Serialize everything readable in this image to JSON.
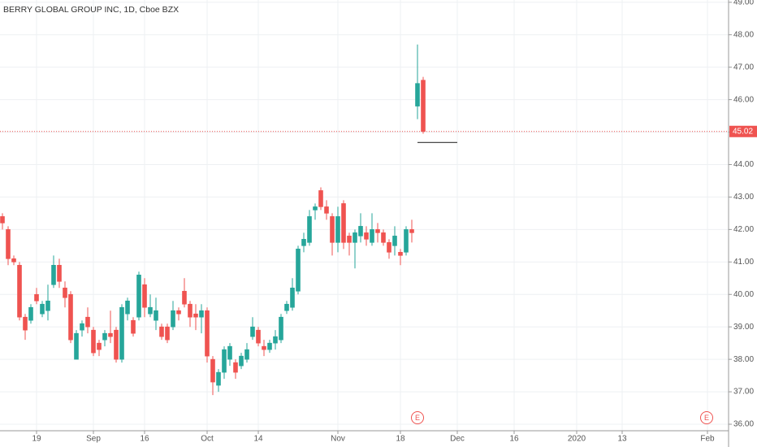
{
  "chart_data": {
    "type": "candlestick",
    "title": "BERRY GLOBAL GROUP INC, 1D, Cboe BZX",
    "categories": [
      null,
      null,
      null,
      null,
      null,
      null,
      "19",
      null,
      null,
      null,
      null,
      null,
      null,
      null,
      null,
      null,
      "Sep",
      null,
      null,
      null,
      null,
      null,
      null,
      null,
      null,
      "16",
      null,
      null,
      null,
      null,
      null,
      null,
      null,
      null,
      null,
      null,
      "Oct",
      null,
      null,
      null,
      null,
      null,
      null,
      null,
      null,
      "14",
      null,
      null,
      null,
      null,
      null,
      null,
      null,
      null,
      null,
      null,
      null,
      null,
      null,
      "Nov",
      null,
      null,
      null,
      null,
      null,
      null,
      null,
      null,
      null,
      null,
      "18",
      null,
      null,
      null,
      null,
      null,
      null,
      null,
      null,
      null,
      "Dec",
      null,
      null,
      null,
      null,
      null,
      null,
      null,
      null,
      null,
      "16",
      null,
      null,
      null,
      null,
      null,
      null,
      null,
      null,
      null,
      null,
      "2020",
      null,
      null,
      null,
      null,
      null,
      null,
      null,
      "13",
      null,
      null,
      null,
      null,
      null,
      null,
      null,
      null,
      null,
      null,
      null,
      null,
      null,
      null,
      "Feb",
      null,
      null,
      null
    ],
    "open": [
      42.4,
      42.0,
      41.1,
      40.9,
      39.3,
      39.2,
      40.0,
      39.4,
      39.5,
      40.3,
      40.9,
      40.2,
      40.0,
      38.0,
      38.9,
      39.3,
      38.9,
      38.5,
      38.6,
      38.8,
      38.9,
      38.0,
      39.4,
      39.2,
      39.3,
      40.3,
      39.4,
      39.2,
      39.0,
      39.0,
      39.0,
      39.5,
      40.1,
      39.7,
      39.4,
      39.3,
      39.5,
      38.0,
      37.2,
      37.6,
      38.0,
      37.9,
      37.8,
      38.0,
      38.7,
      38.9,
      38.4,
      38.3,
      38.5,
      38.6,
      39.5,
      39.6,
      40.1,
      41.5,
      41.6,
      42.6,
      43.2,
      42.7,
      42.4,
      41.6,
      42.8,
      41.8,
      41.6,
      41.8,
      41.9,
      41.6,
      42.0,
      41.9,
      41.6,
      41.5,
      41.3,
      41.3,
      42.0,
      45.8,
      46.6,
      null,
      null,
      null,
      null,
      null,
      null,
      null,
      null,
      null,
      null,
      null,
      null,
      null,
      null,
      null,
      null,
      null,
      null,
      null,
      null,
      null,
      null,
      null,
      null,
      null,
      null,
      null,
      null,
      null,
      null,
      null,
      null,
      null,
      null,
      null,
      null,
      null,
      null,
      null,
      null,
      null,
      null,
      null,
      null,
      null,
      null,
      null,
      null,
      null,
      null,
      null,
      null,
      null
    ],
    "high": [
      42.5,
      42.1,
      41.2,
      41.0,
      39.4,
      39.7,
      40.2,
      39.8,
      40.3,
      41.2,
      41.1,
      40.4,
      40.1,
      38.9,
      39.2,
      39.6,
      39.0,
      38.6,
      38.9,
      39.5,
      39.0,
      39.7,
      39.9,
      39.3,
      40.7,
      40.5,
      40.0,
      39.9,
      39.1,
      39.1,
      39.8,
      39.6,
      40.5,
      39.8,
      39.7,
      39.7,
      39.6,
      38.1,
      37.7,
      38.4,
      38.5,
      38.0,
      38.2,
      38.5,
      39.3,
      39.0,
      38.6,
      38.6,
      38.9,
      39.4,
      39.8,
      40.5,
      41.5,
      41.9,
      42.6,
      42.8,
      43.3,
      42.9,
      42.5,
      42.7,
      42.9,
      41.9,
      42.0,
      42.5,
      42.1,
      42.5,
      42.2,
      42.0,
      41.7,
      42.1,
      41.4,
      42.1,
      42.3,
      47.7,
      46.7,
      null,
      null,
      null,
      null,
      null,
      null,
      null,
      null,
      null,
      null,
      null,
      null,
      null,
      null,
      null,
      null,
      null,
      null,
      null,
      null,
      null,
      null,
      null,
      null,
      null,
      null,
      null,
      null,
      null,
      null,
      null,
      null,
      null,
      null,
      null,
      null,
      null,
      null,
      null,
      null,
      null,
      null,
      null,
      null,
      null,
      null,
      null,
      null,
      null,
      null,
      null,
      null,
      null
    ],
    "low": [
      42.0,
      40.9,
      40.9,
      39.2,
      38.6,
      39.1,
      39.7,
      39.3,
      39.2,
      40.2,
      40.2,
      39.6,
      38.5,
      38.0,
      38.7,
      38.8,
      38.1,
      38.1,
      38.4,
      38.5,
      37.9,
      37.9,
      39.2,
      38.7,
      39.2,
      39.3,
      39.3,
      38.9,
      38.6,
      38.5,
      38.9,
      39.2,
      39.6,
      39.0,
      38.9,
      38.8,
      37.9,
      36.9,
      37.0,
      37.4,
      37.8,
      37.4,
      37.7,
      37.9,
      38.6,
      38.4,
      38.1,
      38.2,
      38.3,
      38.5,
      39.4,
      39.5,
      40.0,
      41.3,
      41.5,
      42.3,
      42.6,
      42.3,
      41.2,
      41.3,
      41.4,
      41.2,
      40.8,
      41.6,
      41.5,
      41.5,
      41.6,
      41.5,
      41.1,
      41.2,
      40.9,
      41.2,
      41.6,
      45.4,
      44.95,
      null,
      null,
      null,
      null,
      null,
      null,
      null,
      null,
      null,
      null,
      null,
      null,
      null,
      null,
      null,
      null,
      null,
      null,
      null,
      null,
      null,
      null,
      null,
      null,
      null,
      null,
      null,
      null,
      null,
      null,
      null,
      null,
      null,
      null,
      null,
      null,
      null,
      null,
      null,
      null,
      null,
      null,
      null,
      null,
      null,
      null,
      null,
      null,
      null,
      null,
      null,
      null,
      null
    ],
    "close": [
      42.2,
      41.1,
      41.0,
      39.3,
      38.9,
      39.6,
      39.8,
      39.7,
      39.8,
      40.9,
      40.4,
      39.9,
      38.6,
      38.8,
      39.1,
      39.0,
      38.2,
      38.3,
      38.8,
      38.7,
      38.0,
      39.6,
      39.8,
      38.8,
      40.6,
      39.6,
      39.6,
      39.5,
      38.7,
      38.6,
      39.5,
      39.4,
      39.7,
      39.3,
      39.3,
      39.5,
      38.1,
      37.3,
      37.6,
      38.3,
      38.4,
      37.6,
      38.1,
      38.3,
      39.0,
      38.5,
      38.3,
      38.5,
      38.7,
      39.3,
      39.7,
      40.2,
      41.4,
      41.7,
      42.4,
      42.7,
      42.7,
      42.5,
      41.6,
      42.4,
      41.6,
      41.6,
      41.9,
      42.1,
      41.7,
      42.0,
      41.9,
      41.6,
      41.3,
      41.8,
      41.2,
      42.0,
      41.9,
      46.5,
      45.02,
      null,
      null,
      null,
      null,
      null,
      null,
      null,
      null,
      null,
      null,
      null,
      null,
      null,
      null,
      null,
      null,
      null,
      null,
      null,
      null,
      null,
      null,
      null,
      null,
      null,
      null,
      null,
      null,
      null,
      null,
      null,
      null,
      null,
      null,
      null,
      null,
      null,
      null,
      null,
      null,
      null,
      null,
      null,
      null,
      null,
      null,
      null,
      null,
      null,
      null,
      null,
      null,
      null
    ],
    "up_color": "#26a69a",
    "down_color": "#ef5350",
    "last_price": 45.02,
    "last_price_color": "#ef5350",
    "drawn_level": 44.68,
    "earnings_markers": [
      "E",
      "E"
    ],
    "ylim": [
      35.8,
      49.07
    ],
    "yticks": [
      {
        "value": 36,
        "label": "36.00"
      },
      {
        "value": 37,
        "label": "37.00"
      },
      {
        "value": 38,
        "label": "38.00"
      },
      {
        "value": 39,
        "label": "39.00"
      },
      {
        "value": 40,
        "label": "40.00"
      },
      {
        "value": 41,
        "label": "41.00"
      },
      {
        "value": 42,
        "label": "42.00"
      },
      {
        "value": 43,
        "label": "43.00"
      },
      {
        "value": 44,
        "label": "44.00"
      },
      {
        "value": 45,
        "label": "45.00"
      },
      {
        "value": 46,
        "label": "46.00"
      },
      {
        "value": 47,
        "label": "47.00"
      },
      {
        "value": 48,
        "label": "48.00"
      },
      {
        "value": 49,
        "label": "49.00"
      }
    ],
    "grid": true
  }
}
